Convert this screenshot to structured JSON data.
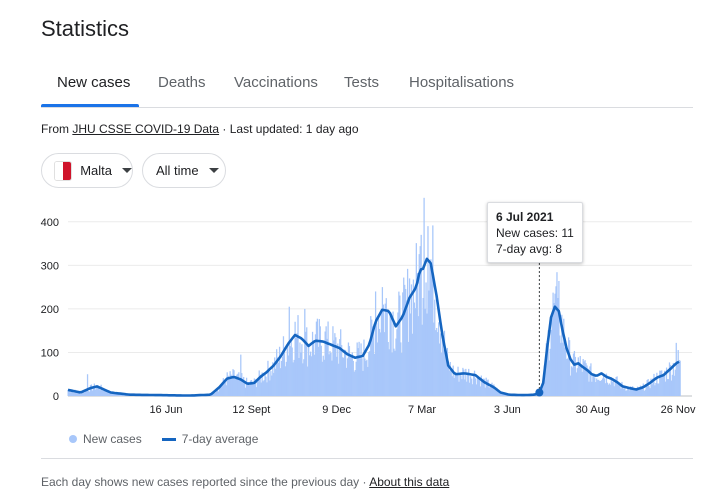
{
  "page": {
    "title": "Statistics"
  },
  "tabs": [
    {
      "label": "New cases",
      "active": true
    },
    {
      "label": "Deaths",
      "active": false
    },
    {
      "label": "Vaccinations",
      "active": false
    },
    {
      "label": "Tests",
      "active": false
    },
    {
      "label": "Hospitalisations",
      "active": false
    }
  ],
  "source": {
    "prefix": "From",
    "link": "JHU CSSE COVID-19 Data",
    "separator": "·",
    "updated": "Last updated: 1 day ago"
  },
  "filters": {
    "location": {
      "label": "Malta",
      "flag_colors": [
        "#ffffff",
        "#cf142b"
      ]
    },
    "range": {
      "label": "All time"
    }
  },
  "tooltip": {
    "date": "6 Jul 2021",
    "cases": "New cases: 11",
    "avg": "7-day avg: 8"
  },
  "legend": {
    "bars": "New cases",
    "line": "7-day average"
  },
  "footer": {
    "note": "Each day shows new cases reported since the previous day",
    "separator": "·",
    "link": "About this data"
  },
  "chart_data": {
    "type": "bar",
    "bar_color": "#a8c7fa",
    "line_color": "#1565c0",
    "ylim": [
      0,
      450
    ],
    "yticks": [
      0,
      100,
      200,
      300,
      400
    ],
    "xtick_labels": [
      "16 Jun",
      "12 Sept",
      "9 Dec",
      "7 Mar",
      "3 Jun",
      "30 Aug",
      "26 Nov"
    ],
    "grid": true,
    "highlight": {
      "date": "6 Jul 2021",
      "new_cases": 11,
      "avg": 8
    },
    "avg_anchors": [
      [
        "2020-03-07",
        14
      ],
      [
        "2020-03-20",
        8
      ],
      [
        "2020-03-30",
        18
      ],
      [
        "2020-04-06",
        22
      ],
      [
        "2020-04-20",
        8
      ],
      [
        "2020-05-10",
        3
      ],
      [
        "2020-06-10",
        2
      ],
      [
        "2020-07-10",
        1
      ],
      [
        "2020-08-01",
        3
      ],
      [
        "2020-08-10",
        20
      ],
      [
        "2020-08-18",
        40
      ],
      [
        "2020-08-25",
        44
      ],
      [
        "2020-09-01",
        38
      ],
      [
        "2020-09-08",
        28
      ],
      [
        "2020-09-15",
        30
      ],
      [
        "2020-09-22",
        45
      ],
      [
        "2020-09-28",
        55
      ],
      [
        "2020-10-05",
        70
      ],
      [
        "2020-10-12",
        90
      ],
      [
        "2020-10-20",
        120
      ],
      [
        "2020-10-27",
        140
      ],
      [
        "2020-11-03",
        132
      ],
      [
        "2020-11-10",
        115
      ],
      [
        "2020-11-17",
        127
      ],
      [
        "2020-11-25",
        125
      ],
      [
        "2020-12-03",
        118
      ],
      [
        "2020-12-12",
        110
      ],
      [
        "2020-12-20",
        96
      ],
      [
        "2020-12-28",
        88
      ],
      [
        "2021-01-05",
        92
      ],
      [
        "2021-01-12",
        120
      ],
      [
        "2021-01-18",
        170
      ],
      [
        "2021-01-25",
        198
      ],
      [
        "2021-02-01",
        195
      ],
      [
        "2021-02-08",
        160
      ],
      [
        "2021-02-15",
        182
      ],
      [
        "2021-02-22",
        225
      ],
      [
        "2021-03-01",
        250
      ],
      [
        "2021-03-05",
        290
      ],
      [
        "2021-03-08",
        292
      ],
      [
        "2021-03-12",
        315
      ],
      [
        "2021-03-16",
        305
      ],
      [
        "2021-03-22",
        230
      ],
      [
        "2021-03-28",
        140
      ],
      [
        "2021-04-03",
        70
      ],
      [
        "2021-04-10",
        50
      ],
      [
        "2021-04-20",
        52
      ],
      [
        "2021-05-01",
        48
      ],
      [
        "2021-05-10",
        32
      ],
      [
        "2021-05-20",
        20
      ],
      [
        "2021-05-27",
        8
      ],
      [
        "2021-06-05",
        3
      ],
      [
        "2021-06-20",
        2
      ],
      [
        "2021-07-01",
        3
      ],
      [
        "2021-07-06",
        8
      ],
      [
        "2021-07-10",
        30
      ],
      [
        "2021-07-14",
        110
      ],
      [
        "2021-07-18",
        180
      ],
      [
        "2021-07-22",
        205
      ],
      [
        "2021-07-26",
        195
      ],
      [
        "2021-07-30",
        150
      ],
      [
        "2021-08-03",
        110
      ],
      [
        "2021-08-07",
        85
      ],
      [
        "2021-08-11",
        72
      ],
      [
        "2021-08-15",
        75
      ],
      [
        "2021-08-19",
        68
      ],
      [
        "2021-08-24",
        60
      ],
      [
        "2021-08-29",
        50
      ],
      [
        "2021-09-03",
        46
      ],
      [
        "2021-09-08",
        52
      ],
      [
        "2021-09-13",
        44
      ],
      [
        "2021-09-18",
        40
      ],
      [
        "2021-09-24",
        32
      ],
      [
        "2021-09-30",
        22
      ],
      [
        "2021-10-07",
        18
      ],
      [
        "2021-10-14",
        15
      ],
      [
        "2021-10-21",
        20
      ],
      [
        "2021-10-28",
        30
      ],
      [
        "2021-11-04",
        42
      ],
      [
        "2021-11-11",
        48
      ],
      [
        "2021-11-18",
        62
      ],
      [
        "2021-11-24",
        75
      ],
      [
        "2021-11-28",
        80
      ]
    ],
    "spikes": [
      [
        "2020-03-27",
        50
      ],
      [
        "2020-09-01",
        95
      ],
      [
        "2020-10-21",
        205
      ],
      [
        "2020-11-06",
        200
      ],
      [
        "2020-11-28",
        160
      ],
      [
        "2021-01-18",
        240
      ],
      [
        "2021-01-25",
        250
      ],
      [
        "2021-02-22",
        270
      ],
      [
        "2021-03-06",
        370
      ],
      [
        "2021-03-09",
        455
      ],
      [
        "2021-03-13",
        390
      ],
      [
        "2021-07-22",
        235
      ],
      [
        "2021-07-25",
        225
      ],
      [
        "2021-11-24",
        122
      ]
    ]
  }
}
